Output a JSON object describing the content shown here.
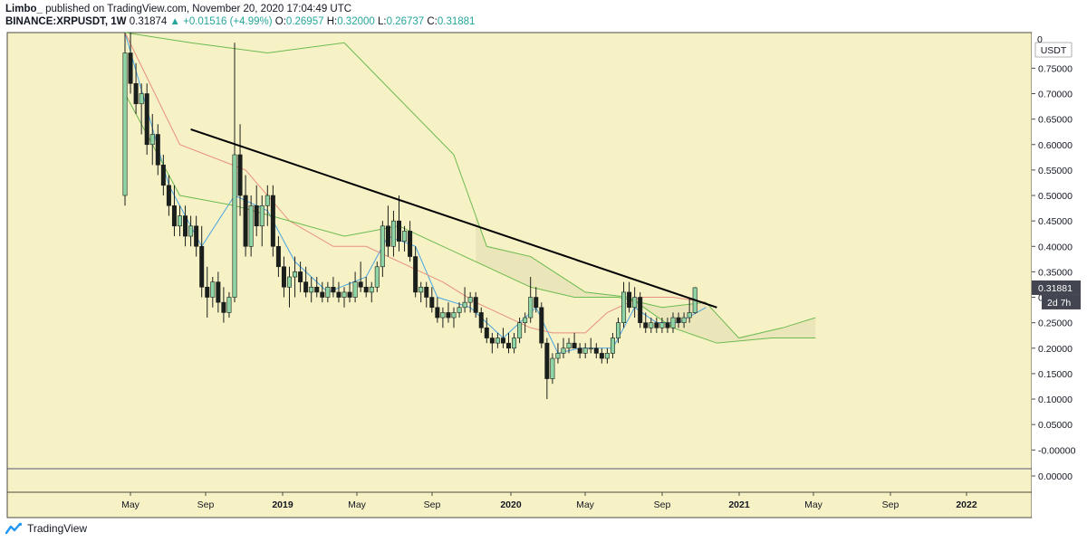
{
  "header": {
    "author": "Limbo_",
    "published_text": "published on TradingView.com, November 20, 2020 17:04:49 UTC",
    "symbol": "BINANCE:XRPUSDT, 1W",
    "last": "0.31874",
    "change": "▲ +0.01516 (+4.99%)",
    "o_label": "O:",
    "o_value": "0.26957",
    "h_label": "H:",
    "h_value": "0.32000",
    "l_label": "L:",
    "l_value": "0.26737",
    "c_label": "C:",
    "c_value": "0.31881"
  },
  "footer": {
    "brand": "TradingView",
    "logo_icon": "tradingview-logo-icon"
  },
  "colors": {
    "background": "#f7f2c6",
    "up_candle": "#8fd4a4",
    "down_candle": "#1b1f1c",
    "tenkan": "#4aa5e0",
    "kijun": "#e88f7f",
    "span": "#6cba4f",
    "cloud": "#e6e2b4",
    "trendline": "#000000",
    "last_price_label": "#434651"
  },
  "chart_data": {
    "type": "candlestick",
    "title": "BINANCE:XRPUSDT, 1W",
    "price_axis": {
      "currency": "USDT",
      "ticks": [
        "0.75000",
        "0.70000",
        "0.65000",
        "0.60000",
        "0.55000",
        "0.50000",
        "0.45000",
        "0.40000",
        "0.35000",
        "0.30000",
        "0.25000",
        "0.20000",
        "0.15000",
        "0.10000",
        "0.05000",
        "-0.00000"
      ],
      "ylim": [
        -0.035,
        0.82
      ],
      "last_price": "0.31881",
      "countdown": "2d 7h",
      "top_partial": "0",
      "sub_pane_tick": "0.00000"
    },
    "time_axis": {
      "ticks": [
        "May",
        "Sep",
        "2019",
        "May",
        "Sep",
        "2020",
        "May",
        "Sep",
        "2021",
        "May",
        "Sep",
        "2022"
      ],
      "bold": [
        "2019",
        "2020",
        "2021",
        "2022"
      ]
    },
    "candles": [
      [
        0.5,
        0.82,
        0.48,
        0.78
      ],
      [
        0.78,
        0.82,
        0.7,
        0.72
      ],
      [
        0.72,
        0.76,
        0.66,
        0.68
      ],
      [
        0.68,
        0.72,
        0.62,
        0.7
      ],
      [
        0.7,
        0.72,
        0.58,
        0.6
      ],
      [
        0.6,
        0.66,
        0.56,
        0.62
      ],
      [
        0.62,
        0.64,
        0.54,
        0.56
      ],
      [
        0.56,
        0.58,
        0.5,
        0.52
      ],
      [
        0.52,
        0.54,
        0.46,
        0.48
      ],
      [
        0.48,
        0.52,
        0.42,
        0.44
      ],
      [
        0.44,
        0.48,
        0.42,
        0.46
      ],
      [
        0.46,
        0.48,
        0.4,
        0.42
      ],
      [
        0.42,
        0.46,
        0.4,
        0.44
      ],
      [
        0.44,
        0.46,
        0.38,
        0.4
      ],
      [
        0.4,
        0.44,
        0.3,
        0.32
      ],
      [
        0.32,
        0.36,
        0.26,
        0.3
      ],
      [
        0.3,
        0.34,
        0.28,
        0.33
      ],
      [
        0.33,
        0.35,
        0.27,
        0.29
      ],
      [
        0.29,
        0.32,
        0.25,
        0.27
      ],
      [
        0.27,
        0.31,
        0.26,
        0.3
      ],
      [
        0.3,
        0.8,
        0.29,
        0.58
      ],
      [
        0.58,
        0.64,
        0.46,
        0.5
      ],
      [
        0.5,
        0.54,
        0.38,
        0.4
      ],
      [
        0.4,
        0.5,
        0.38,
        0.48
      ],
      [
        0.48,
        0.52,
        0.42,
        0.44
      ],
      [
        0.44,
        0.5,
        0.4,
        0.48
      ],
      [
        0.48,
        0.52,
        0.44,
        0.5
      ],
      [
        0.5,
        0.52,
        0.38,
        0.4
      ],
      [
        0.4,
        0.42,
        0.34,
        0.36
      ],
      [
        0.36,
        0.38,
        0.3,
        0.32
      ],
      [
        0.32,
        0.36,
        0.28,
        0.34
      ],
      [
        0.34,
        0.38,
        0.3,
        0.35
      ],
      [
        0.35,
        0.37,
        0.31,
        0.33
      ],
      [
        0.33,
        0.36,
        0.3,
        0.31
      ],
      [
        0.31,
        0.34,
        0.29,
        0.32
      ],
      [
        0.32,
        0.34,
        0.3,
        0.31
      ],
      [
        0.31,
        0.33,
        0.29,
        0.3
      ],
      [
        0.3,
        0.33,
        0.29,
        0.32
      ],
      [
        0.32,
        0.34,
        0.3,
        0.31
      ],
      [
        0.31,
        0.33,
        0.29,
        0.3
      ],
      [
        0.3,
        0.32,
        0.28,
        0.31
      ],
      [
        0.31,
        0.33,
        0.29,
        0.3
      ],
      [
        0.3,
        0.35,
        0.29,
        0.33
      ],
      [
        0.33,
        0.37,
        0.31,
        0.32
      ],
      [
        0.32,
        0.34,
        0.3,
        0.31
      ],
      [
        0.31,
        0.33,
        0.29,
        0.32
      ],
      [
        0.32,
        0.37,
        0.31,
        0.36
      ],
      [
        0.36,
        0.45,
        0.34,
        0.44
      ],
      [
        0.44,
        0.48,
        0.38,
        0.4
      ],
      [
        0.4,
        0.47,
        0.38,
        0.45
      ],
      [
        0.45,
        0.5,
        0.39,
        0.41
      ],
      [
        0.41,
        0.44,
        0.39,
        0.43
      ],
      [
        0.43,
        0.45,
        0.37,
        0.38
      ],
      [
        0.38,
        0.4,
        0.3,
        0.31
      ],
      [
        0.31,
        0.33,
        0.29,
        0.32
      ],
      [
        0.32,
        0.33,
        0.28,
        0.3
      ],
      [
        0.3,
        0.32,
        0.27,
        0.28
      ],
      [
        0.28,
        0.3,
        0.25,
        0.26
      ],
      [
        0.26,
        0.28,
        0.24,
        0.27
      ],
      [
        0.27,
        0.29,
        0.25,
        0.26
      ],
      [
        0.26,
        0.28,
        0.24,
        0.27
      ],
      [
        0.27,
        0.29,
        0.26,
        0.28
      ],
      [
        0.28,
        0.32,
        0.27,
        0.29
      ],
      [
        0.29,
        0.31,
        0.27,
        0.3
      ],
      [
        0.3,
        0.31,
        0.26,
        0.27
      ],
      [
        0.27,
        0.28,
        0.23,
        0.24
      ],
      [
        0.24,
        0.26,
        0.21,
        0.22
      ],
      [
        0.22,
        0.23,
        0.19,
        0.21
      ],
      [
        0.21,
        0.23,
        0.2,
        0.22
      ],
      [
        0.22,
        0.24,
        0.2,
        0.21
      ],
      [
        0.21,
        0.23,
        0.19,
        0.2
      ],
      [
        0.2,
        0.23,
        0.19,
        0.22
      ],
      [
        0.22,
        0.26,
        0.21,
        0.25
      ],
      [
        0.25,
        0.27,
        0.23,
        0.26
      ],
      [
        0.26,
        0.34,
        0.25,
        0.3
      ],
      [
        0.3,
        0.32,
        0.27,
        0.28
      ],
      [
        0.28,
        0.29,
        0.2,
        0.21
      ],
      [
        0.21,
        0.22,
        0.1,
        0.14
      ],
      [
        0.14,
        0.19,
        0.13,
        0.18
      ],
      [
        0.18,
        0.21,
        0.17,
        0.19
      ],
      [
        0.19,
        0.22,
        0.18,
        0.2
      ],
      [
        0.2,
        0.22,
        0.19,
        0.21
      ],
      [
        0.21,
        0.23,
        0.2,
        0.2
      ],
      [
        0.2,
        0.21,
        0.18,
        0.19
      ],
      [
        0.19,
        0.21,
        0.18,
        0.2
      ],
      [
        0.2,
        0.22,
        0.19,
        0.2
      ],
      [
        0.2,
        0.21,
        0.18,
        0.19
      ],
      [
        0.19,
        0.2,
        0.17,
        0.18
      ],
      [
        0.18,
        0.2,
        0.17,
        0.19
      ],
      [
        0.19,
        0.23,
        0.18,
        0.22
      ],
      [
        0.22,
        0.26,
        0.21,
        0.25
      ],
      [
        0.25,
        0.33,
        0.24,
        0.31
      ],
      [
        0.31,
        0.33,
        0.27,
        0.28
      ],
      [
        0.28,
        0.32,
        0.26,
        0.3
      ],
      [
        0.3,
        0.31,
        0.24,
        0.25
      ],
      [
        0.25,
        0.27,
        0.23,
        0.24
      ],
      [
        0.24,
        0.26,
        0.23,
        0.25
      ],
      [
        0.25,
        0.26,
        0.23,
        0.24
      ],
      [
        0.24,
        0.26,
        0.23,
        0.25
      ],
      [
        0.25,
        0.26,
        0.23,
        0.24
      ],
      [
        0.24,
        0.27,
        0.23,
        0.26
      ],
      [
        0.26,
        0.27,
        0.24,
        0.25
      ],
      [
        0.25,
        0.27,
        0.24,
        0.26
      ],
      [
        0.26,
        0.3,
        0.25,
        0.27
      ],
      [
        0.26957,
        0.32,
        0.26737,
        0.31881
      ]
    ],
    "ichimoku": {
      "tenkan": [
        [
          0,
          0.82
        ],
        [
          8,
          0.52
        ],
        [
          14,
          0.4
        ],
        [
          20,
          0.5
        ],
        [
          26,
          0.47
        ],
        [
          31,
          0.37
        ],
        [
          37,
          0.31
        ],
        [
          44,
          0.34
        ],
        [
          48,
          0.42
        ],
        [
          53,
          0.4
        ],
        [
          57,
          0.3
        ],
        [
          63,
          0.28
        ],
        [
          69,
          0.22
        ],
        [
          75,
          0.28
        ],
        [
          79,
          0.19
        ],
        [
          83,
          0.2
        ],
        [
          89,
          0.2
        ],
        [
          93,
          0.28
        ],
        [
          97,
          0.25
        ],
        [
          101,
          0.25
        ],
        [
          106,
          0.28
        ]
      ],
      "kijun": [
        [
          0,
          0.82
        ],
        [
          10,
          0.6
        ],
        [
          22,
          0.55
        ],
        [
          30,
          0.45
        ],
        [
          38,
          0.4
        ],
        [
          44,
          0.4
        ],
        [
          52,
          0.36
        ],
        [
          58,
          0.33
        ],
        [
          64,
          0.29
        ],
        [
          70,
          0.26
        ],
        [
          74,
          0.24
        ],
        [
          78,
          0.23
        ],
        [
          84,
          0.23
        ],
        [
          88,
          0.27
        ],
        [
          94,
          0.3
        ],
        [
          100,
          0.3
        ],
        [
          106,
          0.29
        ]
      ],
      "span_a": [
        [
          0,
          0.7
        ],
        [
          10,
          0.5
        ],
        [
          20,
          0.48
        ],
        [
          30,
          0.45
        ],
        [
          40,
          0.42
        ],
        [
          50,
          0.44
        ],
        [
          58,
          0.4
        ],
        [
          66,
          0.36
        ],
        [
          74,
          0.32
        ],
        [
          82,
          0.3
        ],
        [
          90,
          0.3
        ],
        [
          98,
          0.28
        ],
        [
          106,
          0.29
        ],
        [
          112,
          0.22
        ],
        [
          120,
          0.24
        ],
        [
          126,
          0.26
        ]
      ],
      "span_b": [
        [
          0,
          0.82
        ],
        [
          12,
          0.8
        ],
        [
          26,
          0.78
        ],
        [
          40,
          0.8
        ],
        [
          60,
          0.58
        ],
        [
          66,
          0.4
        ],
        [
          74,
          0.38
        ],
        [
          84,
          0.31
        ],
        [
          92,
          0.3
        ],
        [
          100,
          0.24
        ],
        [
          108,
          0.21
        ],
        [
          118,
          0.22
        ],
        [
          126,
          0.22
        ]
      ]
    },
    "trendline": {
      "from": [
        12,
        0.63
      ],
      "to": [
        108,
        0.28
      ]
    }
  }
}
